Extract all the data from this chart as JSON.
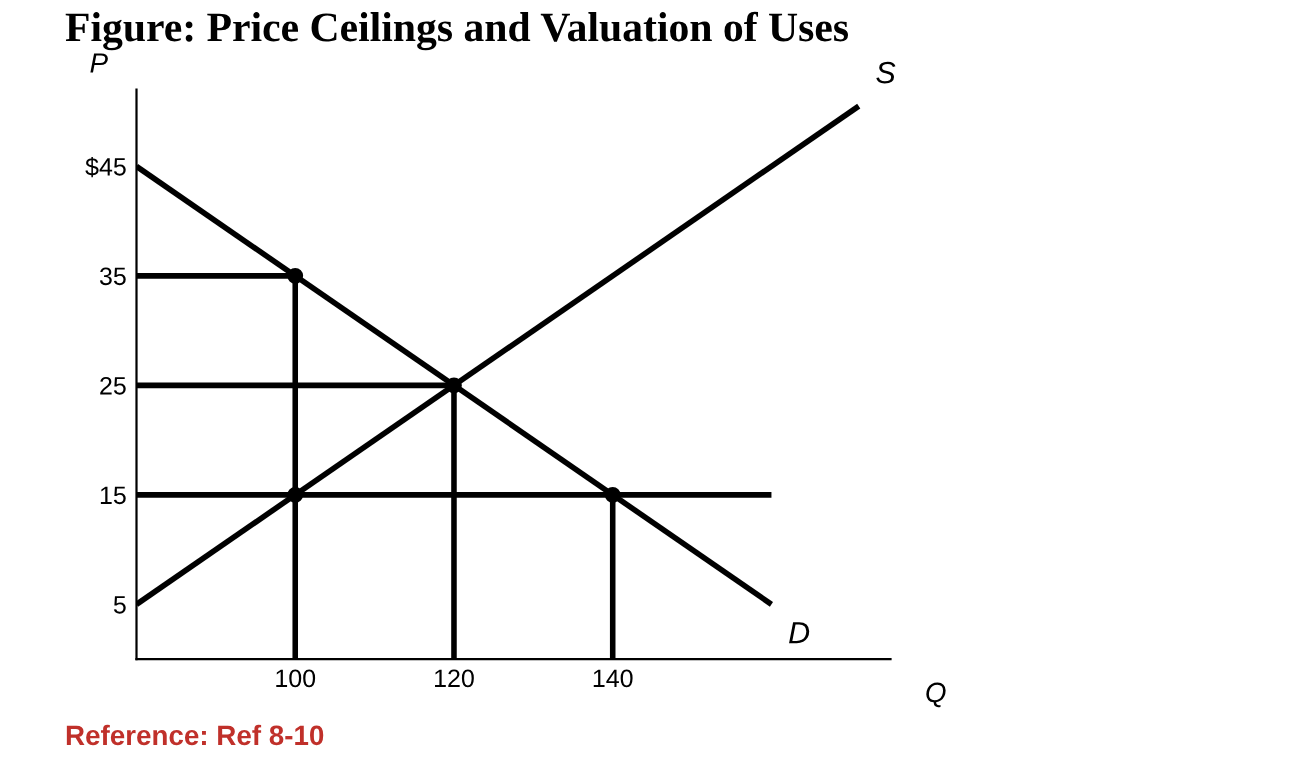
{
  "chart_data": {
    "type": "line",
    "title": "Figure: Price Ceilings and Valuation of Uses",
    "xlabel": "Q",
    "ylabel": "P",
    "xlim": [
      80,
      175
    ],
    "ylim": [
      0,
      52
    ],
    "xticks": [
      100,
      120,
      140
    ],
    "yticks": [
      {
        "value": 45,
        "label": "$45"
      },
      35,
      25,
      15,
      5
    ],
    "grid": false,
    "legend": false,
    "marker": "none",
    "line_style": "solid",
    "annotations": [
      "Reference: Ref 8-10"
    ],
    "series": [
      {
        "name": "S",
        "color": "#000000",
        "x": [
          80,
          171
        ],
        "values": [
          5,
          50.5
        ]
      },
      {
        "name": "D",
        "color": "#000000",
        "x": [
          80,
          160
        ],
        "values": [
          45,
          5
        ]
      },
      {
        "color": "#000000",
        "x": [
          80,
          100
        ],
        "values": [
          35,
          35
        ]
      },
      {
        "color": "#000000",
        "x": [
          80,
          120
        ],
        "values": [
          25,
          25
        ]
      },
      {
        "color": "#000000",
        "x": [
          80,
          160
        ],
        "values": [
          15,
          15
        ]
      },
      {
        "color": "#000000",
        "x": [
          100,
          100
        ],
        "values": [
          0,
          35
        ]
      },
      {
        "color": "#000000",
        "x": [
          120,
          120
        ],
        "values": [
          0,
          25
        ]
      },
      {
        "color": "#000000",
        "x": [
          140,
          140
        ],
        "values": [
          0,
          15
        ]
      },
      {
        "type": "scatter",
        "color": "#000000",
        "marker": "circle",
        "x": [
          100,
          120,
          100,
          140
        ],
        "values": [
          35,
          25,
          15,
          15
        ]
      }
    ]
  }
}
